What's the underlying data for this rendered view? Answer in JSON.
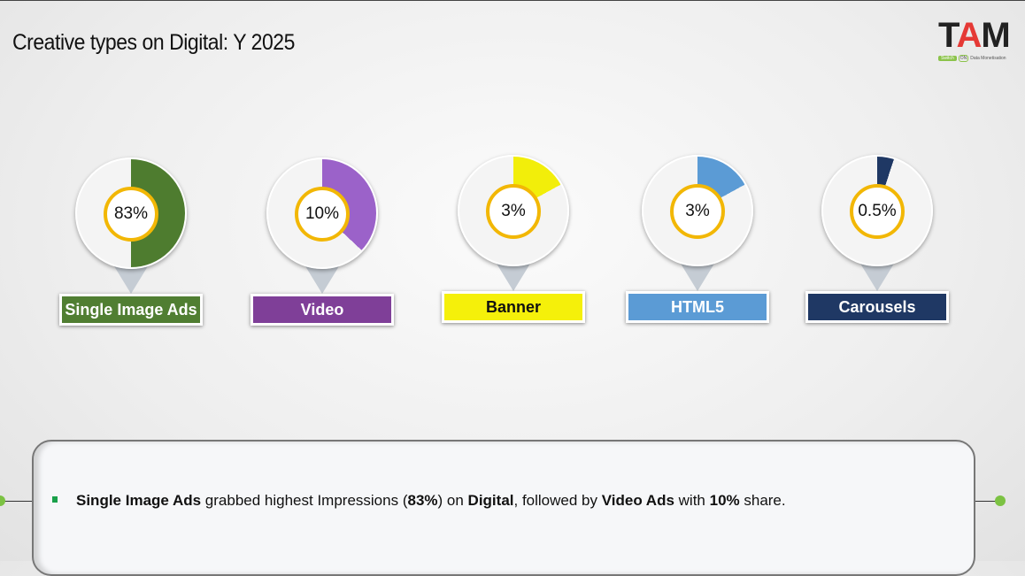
{
  "title": "Creative types on Digital: Y 2025",
  "logo": {
    "text": "TAM",
    "tagline_switch": "Switch",
    "tagline_on": "ON",
    "tagline_rest": "Data Monetisation"
  },
  "chart_data": {
    "type": "pie",
    "title": "Creative types on Digital: Y 2025",
    "categories": [
      "Single Image Ads",
      "Video",
      "Banner",
      "HTML5",
      "Carousels"
    ],
    "values_label": [
      "83%",
      "10%",
      "3%",
      "3%",
      "0.5%"
    ],
    "values": [
      83,
      10,
      3,
      3,
      0.5
    ],
    "drawn_fill_fraction": [
      0.5,
      0.37,
      0.17,
      0.17,
      0.05
    ],
    "colors": [
      "#4e7c2f",
      "#9b62c9",
      "#f2ee0a",
      "#5b9bd5",
      "#1f3864"
    ],
    "label_colors": [
      "#507e32",
      "#7f3f98",
      "#f5f00a",
      "#5b9bd5",
      "#1f3864"
    ],
    "label_text_colors": [
      "#ffffff",
      "#ffffff",
      "#111111",
      "#ffffff",
      "#ffffff"
    ]
  },
  "summary": [
    {
      "text": "Single Image Ads",
      "bold": true
    },
    {
      "text": " grabbed highest Impressions (",
      "bold": false
    },
    {
      "text": "83%",
      "bold": true
    },
    {
      "text": ") on ",
      "bold": false
    },
    {
      "text": "Digital",
      "bold": true
    },
    {
      "text": ", followed by ",
      "bold": false
    },
    {
      "text": "Video Ads",
      "bold": true
    },
    {
      "text": " with ",
      "bold": false
    },
    {
      "text": "10%",
      "bold": true
    },
    {
      "text": " share.",
      "bold": false
    }
  ]
}
